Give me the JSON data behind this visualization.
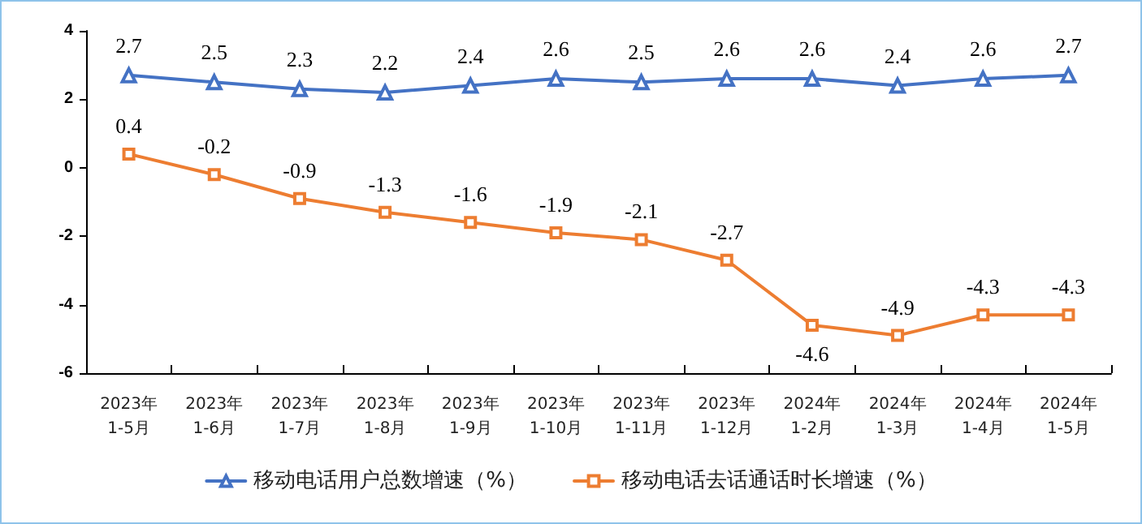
{
  "chart_data": {
    "type": "line",
    "categories": [
      "2023年\n1-5月",
      "2023年\n1-6月",
      "2023年\n1-7月",
      "2023年\n1-8月",
      "2023年\n1-9月",
      "2023年\n1-10月",
      "2023年\n1-11月",
      "2023年\n1-12月",
      "2024年\n1-2月",
      "2024年\n1-3月",
      "2024年\n1-4月",
      "2024年\n1-5月"
    ],
    "series": [
      {
        "name": "移动电话用户总数增速（%）",
        "color": "#4472c4",
        "marker": "triangle",
        "values": [
          2.7,
          2.5,
          2.3,
          2.2,
          2.4,
          2.6,
          2.5,
          2.6,
          2.6,
          2.4,
          2.6,
          2.7
        ]
      },
      {
        "name": "移动电话去话通话时长增速（%）",
        "color": "#ed7d31",
        "marker": "square",
        "values": [
          0.4,
          -0.2,
          -0.9,
          -1.3,
          -1.6,
          -1.9,
          -2.1,
          -2.7,
          -4.6,
          -4.9,
          -4.3,
          -4.3
        ]
      }
    ],
    "ylim": [
      -6,
      4
    ],
    "yticks": [
      -6,
      -4,
      -2,
      0,
      2,
      4
    ],
    "grid": false,
    "legend": "bottom",
    "data_labels": true,
    "line_style": "solid"
  }
}
